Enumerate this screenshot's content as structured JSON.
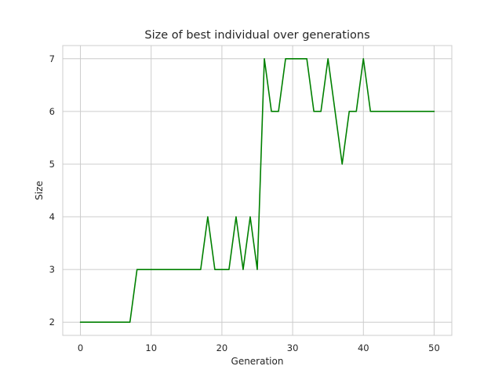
{
  "chart_data": {
    "type": "line",
    "title": "Size of best individual over generations",
    "xlabel": "Generation",
    "ylabel": "Size",
    "xlim": [
      -2.5,
      52.5
    ],
    "ylim": [
      1.75,
      7.25
    ],
    "x_ticks": [
      0,
      10,
      20,
      30,
      40,
      50
    ],
    "y_ticks": [
      2,
      3,
      4,
      5,
      6,
      7
    ],
    "grid": true,
    "series": [
      {
        "color": "#008000",
        "x": [
          0,
          1,
          2,
          3,
          4,
          5,
          6,
          7,
          8,
          9,
          10,
          11,
          12,
          13,
          14,
          15,
          16,
          17,
          18,
          19,
          20,
          21,
          22,
          23,
          24,
          25,
          26,
          27,
          28,
          29,
          30,
          31,
          32,
          33,
          34,
          35,
          36,
          37,
          38,
          39,
          40,
          41,
          42,
          43,
          44,
          45,
          46,
          47,
          48,
          49,
          50
        ],
        "values": [
          2,
          2,
          2,
          2,
          2,
          2,
          2,
          2,
          3,
          3,
          3,
          3,
          3,
          3,
          3,
          3,
          3,
          3,
          4,
          3,
          3,
          3,
          4,
          3,
          4,
          3,
          7,
          6,
          6,
          7,
          7,
          7,
          7,
          6,
          6,
          7,
          6,
          5,
          6,
          6,
          7,
          6,
          6,
          6,
          6,
          6,
          6,
          6,
          6,
          6,
          6
        ]
      }
    ]
  }
}
